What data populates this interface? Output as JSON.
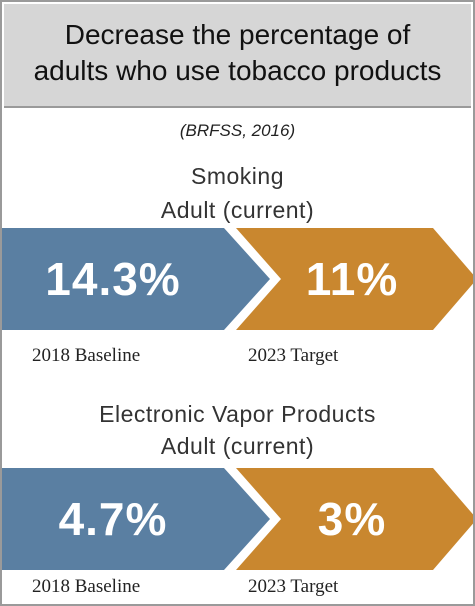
{
  "header": {
    "line1": "Decrease the percentage of",
    "line2": "adults who use tobacco products"
  },
  "source": "(BRFSS, 2016)",
  "metrics": [
    {
      "title_line1": "Smoking",
      "title_line2": "Adult (current)",
      "baseline_value": "14.3%",
      "target_value": "11%",
      "baseline_label": "2018 Baseline",
      "target_label": "2023 Target"
    },
    {
      "title_line1": "Electronic Vapor Products",
      "title_line2": "Adult (current)",
      "baseline_value": "4.7%",
      "target_value": "3%",
      "baseline_label": "2018 Baseline",
      "target_label": "2023 Target"
    }
  ],
  "colors": {
    "baseline": "#5a7fa2",
    "target": "#c9872f",
    "header_bg": "#d6d6d6",
    "border": "#9a9a9a"
  }
}
